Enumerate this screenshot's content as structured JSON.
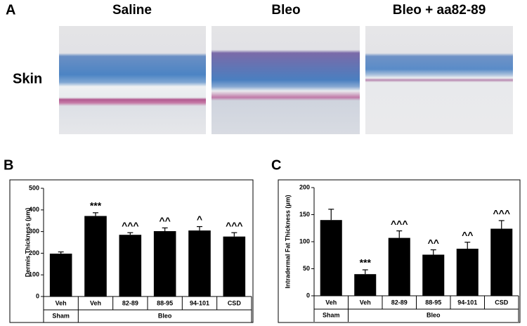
{
  "panel_a": {
    "label": "A",
    "row_label": "Skin",
    "columns": [
      "Saline",
      "Bleo",
      "Bleo + aa82-89"
    ]
  },
  "chart_data": [
    {
      "type": "bar",
      "panel": "B",
      "ylabel": "Dermis Thickness (µm)",
      "groups": [
        {
          "name": "Sham",
          "categories": [
            "Veh"
          ]
        },
        {
          "name": "Bleo",
          "categories": [
            "Veh",
            "82-89",
            "88-95",
            "94-101",
            "CSD"
          ]
        }
      ],
      "values": [
        198,
        372,
        285,
        302,
        305,
        277
      ],
      "errors": [
        8,
        15,
        10,
        15,
        18,
        18
      ],
      "annotations": [
        null,
        "***",
        "^^^",
        "^^",
        "^",
        "^^^"
      ],
      "color": "#000000",
      "ylim": [
        0,
        500
      ],
      "yticks": [
        0,
        100,
        200,
        300,
        400,
        500
      ]
    },
    {
      "type": "bar",
      "panel": "C",
      "ylabel": "Intradermal Fat Thickness (µm)",
      "groups": [
        {
          "name": "Sham",
          "categories": [
            "Veh"
          ]
        },
        {
          "name": "Bleo",
          "categories": [
            "Veh",
            "82-89",
            "88-95",
            "94-101",
            "CSD"
          ]
        }
      ],
      "values": [
        140,
        40,
        107,
        76,
        87,
        124
      ],
      "errors": [
        20,
        8,
        13,
        9,
        12,
        15
      ],
      "annotations": [
        null,
        "***",
        "^^^",
        "^^",
        "^^",
        "^^^"
      ],
      "color": "#000000",
      "ylim": [
        0,
        200
      ],
      "yticks": [
        0,
        50,
        100,
        150,
        200
      ]
    }
  ]
}
